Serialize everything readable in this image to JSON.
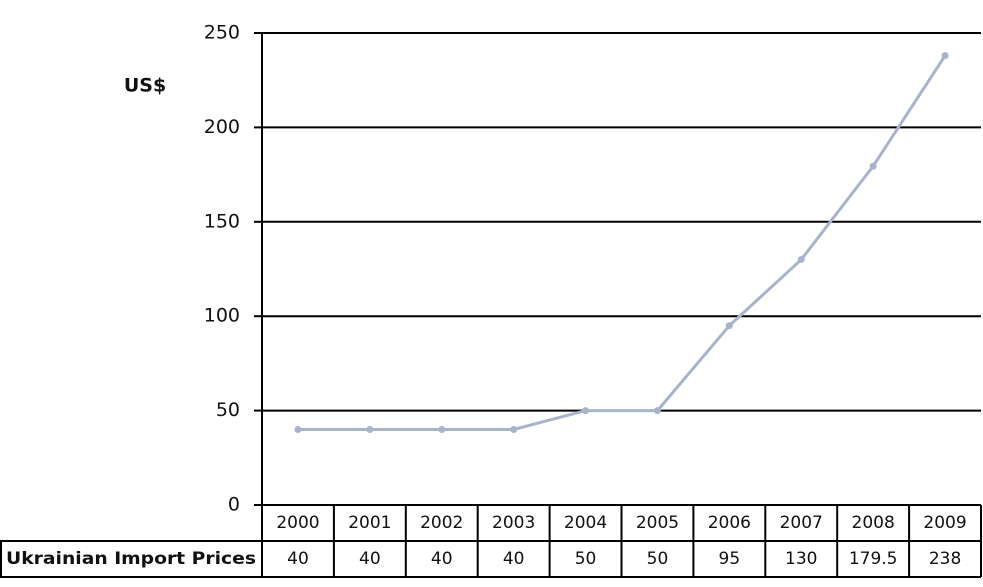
{
  "chart_data": {
    "type": "line",
    "y_label": "US$",
    "categories": [
      "2000",
      "2001",
      "2002",
      "2003",
      "2004",
      "2005",
      "2006",
      "2007",
      "2008",
      "2009"
    ],
    "series": [
      {
        "name": "Ukrainian Import Prices",
        "color": "#aab3cc",
        "values": [
          40,
          40,
          40,
          40,
          50,
          50,
          95,
          130,
          179.5,
          238
        ]
      }
    ],
    "ylim": [
      0,
      250
    ],
    "yticks": [
      0,
      50,
      100,
      150,
      200,
      250
    ],
    "grid": true
  }
}
